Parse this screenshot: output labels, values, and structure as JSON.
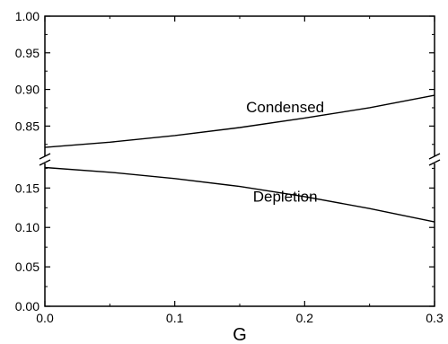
{
  "chart_data": {
    "type": "line",
    "title": "",
    "xlabel": "G",
    "ylabel": "",
    "xlim": [
      0.0,
      0.3
    ],
    "x_ticks": [
      "0.0",
      "0.1",
      "0.2",
      "0.3"
    ],
    "y_axis_broken": true,
    "y_segments": [
      {
        "name": "lower",
        "range": [
          0.0,
          0.18
        ],
        "ticks": [
          "0.00",
          "0.05",
          "0.10",
          "0.15"
        ]
      },
      {
        "name": "upper",
        "range": [
          0.81,
          1.0
        ],
        "ticks": [
          "0.85",
          "0.90",
          "0.95",
          "1.00"
        ]
      }
    ],
    "series": [
      {
        "segment": "upper",
        "x": [
          0.0,
          0.05,
          0.1,
          0.15,
          0.2,
          0.25,
          0.3
        ],
        "y": [
          0.821,
          0.828,
          0.837,
          0.848,
          0.861,
          0.875,
          0.892
        ]
      },
      {
        "segment": "lower",
        "x": [
          0.0,
          0.05,
          0.1,
          0.15,
          0.2,
          0.25,
          0.3
        ],
        "y": [
          0.176,
          0.17,
          0.162,
          0.152,
          0.139,
          0.124,
          0.107
        ]
      }
    ],
    "annotations": [
      {
        "text": "Condensed",
        "x": 0.185,
        "y": 0.869,
        "segment": "upper"
      },
      {
        "text": "Depletion",
        "x": 0.185,
        "y": 0.133,
        "segment": "lower"
      }
    ],
    "grid": false,
    "legend": "none"
  }
}
